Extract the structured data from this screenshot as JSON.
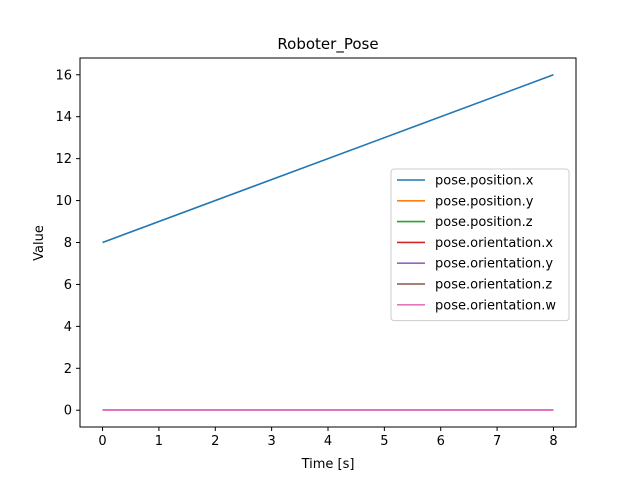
{
  "chart_data": {
    "type": "line",
    "title": "Roboter_Pose",
    "xlabel": "Time [s]",
    "ylabel": "Value",
    "xlim": [
      -0.4,
      8.4
    ],
    "ylim": [
      -0.8,
      16.8
    ],
    "xticks": [
      0,
      1,
      2,
      3,
      4,
      5,
      6,
      7,
      8
    ],
    "yticks": [
      0,
      2,
      4,
      6,
      8,
      10,
      12,
      14,
      16
    ],
    "grid": false,
    "legend_position": "center-right",
    "series": [
      {
        "name": "pose.position.x",
        "color": "#1f77b4",
        "x": [
          0,
          8
        ],
        "y": [
          8,
          16
        ]
      },
      {
        "name": "pose.position.y",
        "color": "#ff7f0e",
        "x": [
          0,
          8
        ],
        "y": [
          0,
          0
        ]
      },
      {
        "name": "pose.position.z",
        "color": "#2ca02c",
        "x": [
          0,
          8
        ],
        "y": [
          0,
          0
        ]
      },
      {
        "name": "pose.orientation.x",
        "color": "#d62728",
        "x": [
          0,
          8
        ],
        "y": [
          0,
          0
        ]
      },
      {
        "name": "pose.orientation.y",
        "color": "#9467bd",
        "x": [
          0,
          8
        ],
        "y": [
          0,
          0
        ]
      },
      {
        "name": "pose.orientation.z",
        "color": "#8c564b",
        "x": [
          0,
          8
        ],
        "y": [
          0,
          0
        ]
      },
      {
        "name": "pose.orientation.w",
        "color": "#e377c2",
        "x": [
          0,
          8
        ],
        "y": [
          0,
          0
        ]
      }
    ]
  }
}
